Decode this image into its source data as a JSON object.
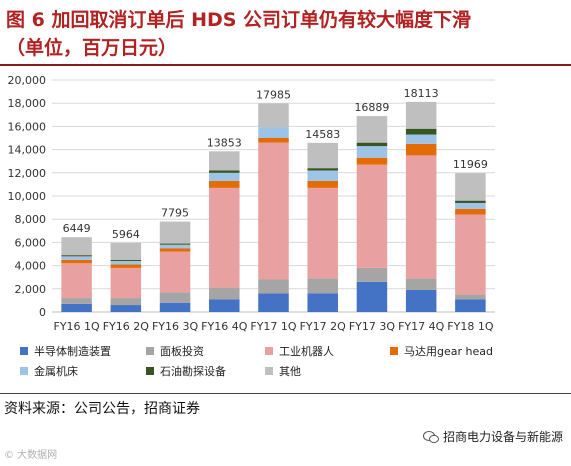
{
  "title_line1": "图 6  加回取消订单后 HDS 公司订单仍有较大幅度下滑",
  "title_line2": "（单位，百万日元）",
  "source": "资料来源：公司公告，招商证券",
  "watermark_left": "© 大数据网",
  "watermark_right": "招商电力设备与新能源",
  "chart_data": {
    "type": "bar",
    "stacked": true,
    "categories": [
      "FY16 1Q",
      "FY16 2Q",
      "FY16 3Q",
      "FY16 4Q",
      "FY17 1Q",
      "FY17 2Q",
      "FY17 3Q",
      "FY17 4Q",
      "FY18 1Q"
    ],
    "totals": [
      6449,
      5964,
      7795,
      13853,
      17985,
      14583,
      16889,
      18113,
      11969
    ],
    "ylim": [
      0,
      20000
    ],
    "yticks": [
      "0",
      "2,000",
      "4,000",
      "6,000",
      "8,000",
      "10,000",
      "12,000",
      "14,000",
      "16,000",
      "18,000",
      "20,000"
    ],
    "ytick_values": [
      0,
      2000,
      4000,
      6000,
      8000,
      10000,
      12000,
      14000,
      16000,
      18000,
      20000
    ],
    "grid": true,
    "legend_position": "bottom",
    "series": [
      {
        "name": "半导体制造装置",
        "color": "#4472c4",
        "values": [
          700,
          600,
          800,
          1100,
          1600,
          1600,
          2600,
          1900,
          1100
        ]
      },
      {
        "name": "面板投资",
        "color": "#a5a5a5",
        "values": [
          500,
          600,
          900,
          1000,
          1200,
          1300,
          1200,
          1000,
          400
        ]
      },
      {
        "name": "工业机器人",
        "color": "#e8a0a0",
        "values": [
          3000,
          2600,
          3500,
          8600,
          11800,
          7800,
          8900,
          10600,
          6900
        ]
      },
      {
        "name": "马达用gear head",
        "color": "#e36c09",
        "values": [
          300,
          300,
          300,
          600,
          400,
          600,
          600,
          1000,
          500
        ]
      },
      {
        "name": "金属机床",
        "color": "#9dc3e6",
        "values": [
          300,
          300,
          300,
          700,
          900,
          900,
          1000,
          800,
          500
        ]
      },
      {
        "name": "石油勘探设备",
        "color": "#375623",
        "values": [
          100,
          100,
          100,
          200,
          0,
          200,
          300,
          500,
          200
        ]
      },
      {
        "name": "其他",
        "color": "#bfbfbf",
        "values": [
          1549,
          1464,
          1895,
          1653,
          2085,
          2183,
          2289,
          2313,
          2369
        ]
      }
    ]
  }
}
